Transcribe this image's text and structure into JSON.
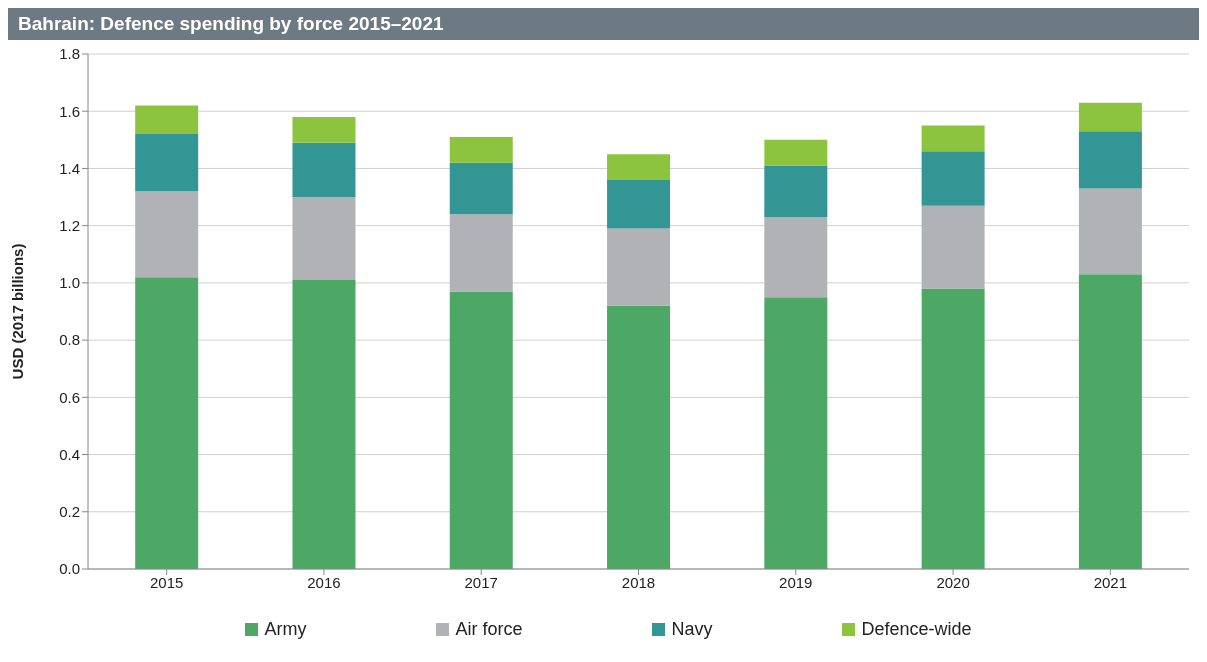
{
  "chart_data": {
    "type": "bar",
    "title": "Bahrain: Defence spending by force 2015–2021",
    "ylabel": "USD (2017 billions)",
    "categories": [
      "2015",
      "2016",
      "2017",
      "2018",
      "2019",
      "2020",
      "2021"
    ],
    "stacked": true,
    "series": [
      {
        "name": "Army",
        "color": "#4ea865",
        "values": [
          1.02,
          1.01,
          0.97,
          0.92,
          0.95,
          0.98,
          1.03
        ]
      },
      {
        "name": "Air force",
        "color": "#b1b2b6",
        "values": [
          0.3,
          0.29,
          0.27,
          0.27,
          0.28,
          0.29,
          0.3
        ]
      },
      {
        "name": "Navy",
        "color": "#339594",
        "values": [
          0.2,
          0.19,
          0.18,
          0.17,
          0.18,
          0.19,
          0.2
        ]
      },
      {
        "name": "Defence-wide",
        "color": "#8cc43f",
        "values": [
          0.1,
          0.09,
          0.09,
          0.09,
          0.09,
          0.09,
          0.1
        ]
      }
    ],
    "ylim": [
      0,
      1.8
    ],
    "yticks": [
      {
        "value": 0,
        "label": "0.0"
      },
      0.2,
      0.4,
      0.6,
      0.8,
      {
        "value": 1,
        "label": "1.0"
      },
      1.2,
      1.4,
      1.6,
      1.8
    ],
    "grid": "y",
    "legend": "bottom"
  }
}
